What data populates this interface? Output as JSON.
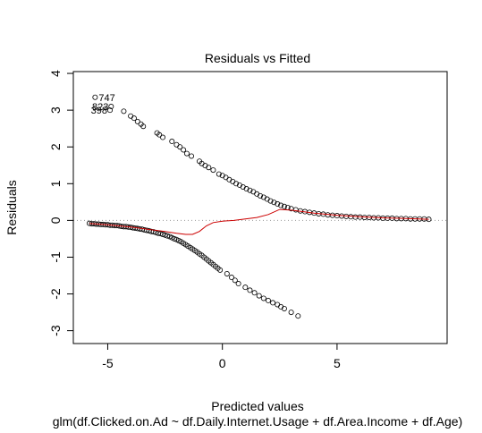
{
  "chart_data": {
    "type": "scatter",
    "title": "Residuals vs Fitted",
    "xlabel": "Predicted values",
    "ylabel": "Residuals",
    "subtitle": "glm(df.Clicked.on.Ad ~ df.Daily.Internet.Usage + df.Area.Income + df.Age)",
    "xlim": [
      -6.5,
      9.8
    ],
    "ylim": [
      -3.35,
      4.05
    ],
    "xticks": [
      -5,
      0,
      5
    ],
    "yticks": [
      -3,
      -2,
      -1,
      0,
      1,
      2,
      3,
      4
    ],
    "grid": false,
    "reference_line": {
      "y": 0,
      "style": "dotted",
      "color": "#999999"
    },
    "point_color": "#000000",
    "smooth_color": "#cc0000",
    "labeled_points": [
      {
        "label": "747",
        "x": -5.55,
        "y": 3.35
      },
      {
        "label": "823",
        "x": -4.85,
        "y": 3.1
      },
      {
        "label": "398",
        "x": -4.9,
        "y": 3.0
      }
    ],
    "upper_points": [
      [
        -4.3,
        2.97
      ],
      [
        -4.0,
        2.84
      ],
      [
        -3.85,
        2.78
      ],
      [
        -3.7,
        2.69
      ],
      [
        -3.55,
        2.62
      ],
      [
        -3.45,
        2.56
      ],
      [
        -2.85,
        2.38
      ],
      [
        -2.75,
        2.33
      ],
      [
        -2.6,
        2.26
      ],
      [
        -2.2,
        2.15
      ],
      [
        -2.0,
        2.06
      ],
      [
        -1.85,
        2.0
      ],
      [
        -1.7,
        1.92
      ],
      [
        -1.55,
        1.82
      ],
      [
        -1.35,
        1.75
      ],
      [
        -1.0,
        1.61
      ],
      [
        -0.9,
        1.55
      ],
      [
        -0.75,
        1.49
      ],
      [
        -0.6,
        1.44
      ],
      [
        -0.4,
        1.37
      ],
      [
        -0.15,
        1.26
      ],
      [
        0.0,
        1.22
      ],
      [
        0.15,
        1.17
      ],
      [
        0.3,
        1.11
      ],
      [
        0.45,
        1.06
      ],
      [
        0.6,
        1.0
      ],
      [
        0.75,
        0.96
      ],
      [
        0.9,
        0.91
      ],
      [
        1.05,
        0.86
      ],
      [
        1.2,
        0.82
      ],
      [
        1.35,
        0.78
      ],
      [
        1.5,
        0.72
      ],
      [
        1.65,
        0.67
      ],
      [
        1.8,
        0.63
      ],
      [
        1.95,
        0.58
      ],
      [
        2.1,
        0.53
      ],
      [
        2.25,
        0.49
      ],
      [
        2.4,
        0.45
      ],
      [
        2.55,
        0.41
      ],
      [
        2.7,
        0.38
      ],
      [
        2.85,
        0.35
      ],
      [
        3.0,
        0.32
      ],
      [
        3.2,
        0.29
      ],
      [
        3.4,
        0.26
      ],
      [
        3.6,
        0.24
      ],
      [
        3.8,
        0.22
      ],
      [
        4.0,
        0.2
      ],
      [
        4.2,
        0.18
      ],
      [
        4.4,
        0.17
      ],
      [
        4.6,
        0.15
      ],
      [
        4.8,
        0.14
      ],
      [
        5.0,
        0.13
      ],
      [
        5.2,
        0.12
      ],
      [
        5.4,
        0.11
      ],
      [
        5.6,
        0.1
      ],
      [
        5.8,
        0.09
      ],
      [
        6.0,
        0.09
      ],
      [
        6.2,
        0.08
      ],
      [
        6.4,
        0.08
      ],
      [
        6.6,
        0.07
      ],
      [
        6.8,
        0.07
      ],
      [
        7.0,
        0.06
      ],
      [
        7.2,
        0.06
      ],
      [
        7.4,
        0.06
      ],
      [
        7.6,
        0.05
      ],
      [
        7.8,
        0.05
      ],
      [
        8.0,
        0.05
      ],
      [
        8.2,
        0.04
      ],
      [
        8.4,
        0.04
      ],
      [
        8.6,
        0.04
      ],
      [
        8.8,
        0.04
      ],
      [
        9.0,
        0.03
      ]
    ],
    "lower_points": [
      [
        -5.8,
        -0.08
      ],
      [
        -5.7,
        -0.09
      ],
      [
        -5.6,
        -0.09
      ],
      [
        -5.5,
        -0.1
      ],
      [
        -5.4,
        -0.1
      ],
      [
        -5.3,
        -0.11
      ],
      [
        -5.2,
        -0.11
      ],
      [
        -5.1,
        -0.12
      ],
      [
        -5.0,
        -0.12
      ],
      [
        -4.9,
        -0.13
      ],
      [
        -4.8,
        -0.13
      ],
      [
        -4.7,
        -0.14
      ],
      [
        -4.6,
        -0.14
      ],
      [
        -4.5,
        -0.15
      ],
      [
        -4.4,
        -0.16
      ],
      [
        -4.3,
        -0.17
      ],
      [
        -4.2,
        -0.17
      ],
      [
        -4.1,
        -0.18
      ],
      [
        -4.0,
        -0.19
      ],
      [
        -3.9,
        -0.2
      ],
      [
        -3.8,
        -0.21
      ],
      [
        -3.7,
        -0.22
      ],
      [
        -3.6,
        -0.23
      ],
      [
        -3.5,
        -0.24
      ],
      [
        -3.4,
        -0.26
      ],
      [
        -3.3,
        -0.27
      ],
      [
        -3.2,
        -0.28
      ],
      [
        -3.1,
        -0.3
      ],
      [
        -3.0,
        -0.31
      ],
      [
        -2.9,
        -0.33
      ],
      [
        -2.8,
        -0.35
      ],
      [
        -2.7,
        -0.36
      ],
      [
        -2.6,
        -0.38
      ],
      [
        -2.5,
        -0.4
      ],
      [
        -2.4,
        -0.42
      ],
      [
        -2.3,
        -0.44
      ],
      [
        -2.2,
        -0.47
      ],
      [
        -2.1,
        -0.5
      ],
      [
        -2.0,
        -0.52
      ],
      [
        -1.9,
        -0.55
      ],
      [
        -1.8,
        -0.58
      ],
      [
        -1.7,
        -0.62
      ],
      [
        -1.6,
        -0.66
      ],
      [
        -1.5,
        -0.7
      ],
      [
        -1.4,
        -0.74
      ],
      [
        -1.3,
        -0.78
      ],
      [
        -1.2,
        -0.82
      ],
      [
        -1.1,
        -0.86
      ],
      [
        -1.0,
        -0.91
      ],
      [
        -0.9,
        -0.95
      ],
      [
        -0.8,
        -1.0
      ],
      [
        -0.7,
        -1.05
      ],
      [
        -0.6,
        -1.1
      ],
      [
        -0.5,
        -1.15
      ],
      [
        -0.4,
        -1.2
      ],
      [
        -0.3,
        -1.25
      ],
      [
        -0.2,
        -1.3
      ],
      [
        -0.1,
        -1.35
      ],
      [
        0.2,
        -1.45
      ],
      [
        0.4,
        -1.55
      ],
      [
        0.55,
        -1.63
      ],
      [
        0.7,
        -1.72
      ],
      [
        1.0,
        -1.82
      ],
      [
        1.2,
        -1.9
      ],
      [
        1.4,
        -1.97
      ],
      [
        1.6,
        -2.05
      ],
      [
        1.8,
        -2.12
      ],
      [
        2.0,
        -2.18
      ],
      [
        2.2,
        -2.24
      ],
      [
        2.4,
        -2.29
      ],
      [
        2.55,
        -2.35
      ],
      [
        2.7,
        -2.4
      ],
      [
        3.0,
        -2.5
      ],
      [
        3.3,
        -2.6
      ]
    ],
    "smooth_line": [
      [
        -5.8,
        -0.08
      ],
      [
        -5.0,
        -0.12
      ],
      [
        -4.0,
        -0.18
      ],
      [
        -3.0,
        -0.26
      ],
      [
        -2.5,
        -0.3
      ],
      [
        -2.0,
        -0.35
      ],
      [
        -1.6,
        -0.38
      ],
      [
        -1.3,
        -0.38
      ],
      [
        -1.0,
        -0.3
      ],
      [
        -0.7,
        -0.15
      ],
      [
        -0.4,
        -0.06
      ],
      [
        0.0,
        -0.02
      ],
      [
        0.5,
        0.0
      ],
      [
        1.0,
        0.04
      ],
      [
        1.5,
        0.08
      ],
      [
        2.0,
        0.16
      ],
      [
        2.5,
        0.3
      ],
      [
        3.0,
        0.28
      ],
      [
        3.5,
        0.24
      ],
      [
        4.0,
        0.2
      ],
      [
        5.0,
        0.14
      ],
      [
        6.0,
        0.1
      ],
      [
        7.0,
        0.07
      ],
      [
        8.0,
        0.05
      ],
      [
        9.0,
        0.03
      ]
    ]
  }
}
